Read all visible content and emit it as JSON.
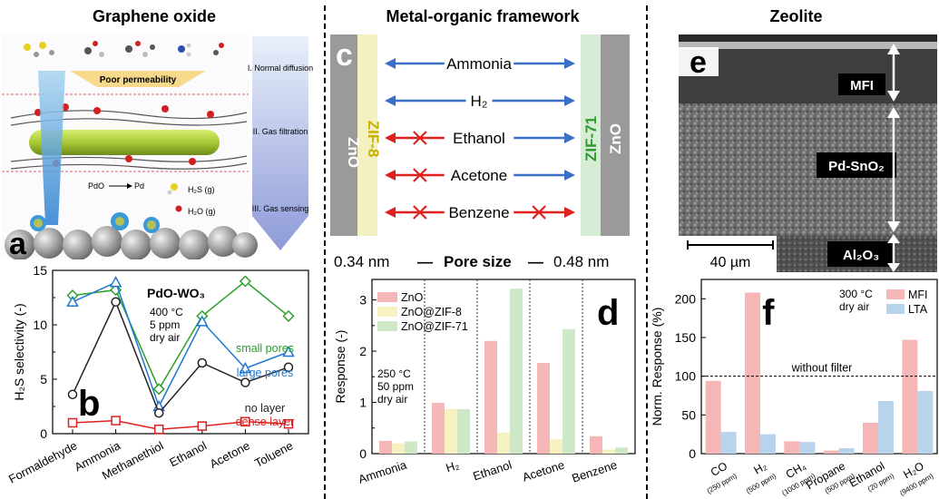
{
  "columns": {
    "left_title": "Graphene oxide",
    "middle_title": "Metal-organic framework",
    "right_title": "Zeolite"
  },
  "panel_a": {
    "letter": "a",
    "poor_permeability": "Poor permeability",
    "stage1": "I. Normal diffusion",
    "stage2": "II. Gas filtration",
    "stage3": "III. Gas sensing",
    "pdo_pd": "PdO",
    "pd": "Pd",
    "h2s": "H₂S (g)",
    "h2o": "H₂O (g)"
  },
  "panel_c": {
    "letter": "c",
    "left_zno": "ZnO",
    "left_zif": "ZIF-8",
    "right_zif": "ZIF-71",
    "right_zno": "ZnO",
    "gases": [
      "Ammonia",
      "H₂",
      "Ethanol",
      "Acetone",
      "Benzene"
    ],
    "pore_left": "0.34 nm",
    "pore_label": "Pore size",
    "pore_right": "0.48 nm",
    "dash": "—"
  },
  "panel_e": {
    "letter": "e",
    "label_mfi": "MFI",
    "label_snO2": "Pd-SnO₂",
    "label_al2o3": "Al₂O₃",
    "scale": "40 µm"
  },
  "colors": {
    "green": "#2ca02c",
    "blue": "#1f77d4",
    "black": "#222222",
    "red": "#e02020",
    "pink": "#f4b6b6",
    "yellow": "#f7f0c0",
    "lightgreen": "#cfe8c8",
    "lightblue": "#b8d4ec",
    "arrow_blue": "#3a6fc8",
    "arrow_red": "#e0201e"
  },
  "chart_data": [
    {
      "id": "b",
      "type": "line",
      "panel_letter": "b",
      "title": "PdO-WO₃",
      "conditions": [
        "400 °C",
        "5 ppm",
        "dry air"
      ],
      "ylabel": "H₂S selectivity (-)",
      "ylim": [
        0,
        15
      ],
      "yticks": [
        0,
        5,
        10,
        15
      ],
      "categories": [
        "Formaldehyde",
        "Ammonia",
        "Methanethiol",
        "Ethanol",
        "Acetone",
        "Toluene"
      ],
      "series": [
        {
          "name": "small pores",
          "color": "#2ca02c",
          "marker": "diamond",
          "values": [
            12.7,
            13.2,
            4.1,
            10.8,
            14.0,
            10.8
          ]
        },
        {
          "name": "large pores",
          "color": "#1f77d4",
          "marker": "triangle",
          "values": [
            12.1,
            13.9,
            2.5,
            10.3,
            6.0,
            7.5
          ]
        },
        {
          "name": "no layer",
          "color": "#222222",
          "marker": "circle",
          "values": [
            3.6,
            12.1,
            1.9,
            6.5,
            4.7,
            6.1
          ]
        },
        {
          "name": "dense layer",
          "color": "#e02020",
          "marker": "square",
          "values": [
            1.0,
            1.2,
            0.4,
            0.7,
            1.1,
            0.9
          ]
        }
      ]
    },
    {
      "id": "d",
      "type": "bar",
      "panel_letter": "d",
      "conditions": [
        "250 °C",
        "50 ppm",
        "dry air"
      ],
      "ylabel": "Response (-)",
      "ylim": [
        0,
        3.4
      ],
      "yticks": [
        0,
        1,
        2,
        3
      ],
      "categories": [
        "Ammonia",
        "H₂",
        "Ethanol",
        "Acetone",
        "Benzene"
      ],
      "series": [
        {
          "name": "ZnO",
          "color": "#f4b6b6",
          "values": [
            0.25,
            0.99,
            2.2,
            1.77,
            0.34
          ]
        },
        {
          "name": "ZnO@ZIF-8",
          "color": "#f7f0c0",
          "values": [
            0.2,
            0.87,
            0.41,
            0.28,
            0.08
          ]
        },
        {
          "name": "ZnO@ZIF-71",
          "color": "#cfe8c8",
          "values": [
            0.24,
            0.87,
            3.22,
            2.43,
            0.12
          ]
        }
      ]
    },
    {
      "id": "f",
      "type": "bar",
      "panel_letter": "f",
      "conditions": [
        "300 °C",
        "dry air"
      ],
      "ylabel": "Norm. Response (%)",
      "ylim": [
        0,
        225
      ],
      "yticks": [
        0,
        50,
        100,
        150,
        200
      ],
      "reference_line": {
        "value": 100,
        "label": "without filter"
      },
      "categories": [
        "CO",
        "H₂",
        "CH₄",
        "Propane",
        "Ethanol",
        "H₂O"
      ],
      "sublabels": [
        "(250 ppm)",
        "(500 ppm)",
        "(1000 ppm)",
        "(500 ppm)",
        "(20 ppm)",
        "(9400 ppm)"
      ],
      "series": [
        {
          "name": "MFI",
          "color": "#f4b6b6",
          "values": [
            94,
            208,
            16,
            4,
            40,
            147
          ]
        },
        {
          "name": "LTA",
          "color": "#b8d4ec",
          "values": [
            28,
            25,
            15,
            7,
            68,
            81
          ]
        }
      ]
    }
  ]
}
